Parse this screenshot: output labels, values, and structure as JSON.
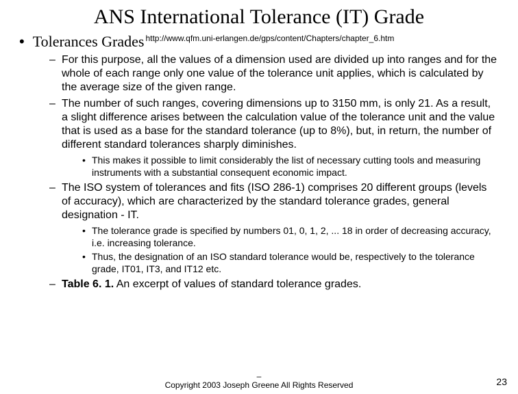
{
  "title": "ANS International Tolerance (IT) Grade",
  "level1_label": "Tolerances Grades",
  "url": "http://www.qfm.uni-erlangen.de/gps/content/Chapters/chapter_6.htm",
  "items": [
    {
      "text": "For this purpose, all the values of a dimension used are divided up into ranges and for the whole of each range only one value of the tolerance unit applies, which is calculated by the average size of the given range."
    },
    {
      "text": "The number of such ranges, covering dimensions up to 3150 mm, is only 21. As a result, a slight difference arises between the calculation value of the tolerance unit and the value that is used as a base for the standard tolerance (up to 8%), but, in return, the number of different standard tolerances sharply diminishes.",
      "sub": [
        "This makes it possible to limit considerably the list of necessary cutting tools and measuring instruments with a substantial consequent economic impact."
      ]
    },
    {
      "text": "The ISO system of tolerances and fits (ISO 286-1) comprises 20 different groups (levels of accuracy), which are characterized by the standard tolerance grades, general designation - IT.",
      "sub": [
        "The tolerance grade is specified by numbers 01, 0, 1, 2, ... 18 in order of decreasing accuracy, i.e. increasing tolerance.",
        "Thus, the designation of an ISO standard tolerance would be, respectively to the tolerance grade, IT01, IT3, and IT12 etc."
      ]
    },
    {
      "bold_prefix": "Table 6. 1.",
      "text": "  An excerpt of values of standard tolerance grades."
    }
  ],
  "footer_line1": "–",
  "footer_line2": "Copyright 2003 Joseph Greene All Rights Reserved",
  "page_number": "23"
}
